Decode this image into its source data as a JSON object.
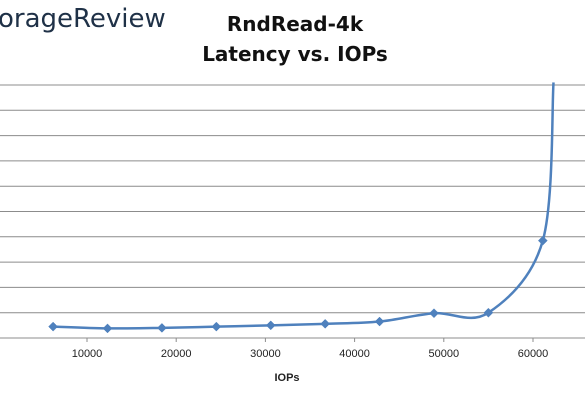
{
  "brand": "orageReview",
  "chart_data": {
    "type": "line",
    "title": "RndRead-4k",
    "subtitle": "Latency vs. IOPs",
    "xlabel": "IOPs",
    "ylabel": "",
    "xlim": [
      0,
      70000
    ],
    "xticks": [
      10000,
      20000,
      30000,
      40000,
      50000,
      60000
    ],
    "ylim": [
      0,
      10
    ],
    "gridlines_y": [
      1,
      2,
      3,
      4,
      5,
      6,
      7,
      8,
      9,
      10
    ],
    "grid": true,
    "legend": "none",
    "color": "#4f81bd",
    "series": [
      {
        "x": [
          6200,
          12300,
          18400,
          24500,
          30600,
          36700,
          42800,
          48900,
          55000,
          61100,
          62300
        ],
        "y": [
          0.45,
          0.38,
          0.4,
          0.45,
          0.5,
          0.56,
          0.65,
          0.98,
          1.0,
          3.85,
          10.1
        ]
      }
    ]
  }
}
